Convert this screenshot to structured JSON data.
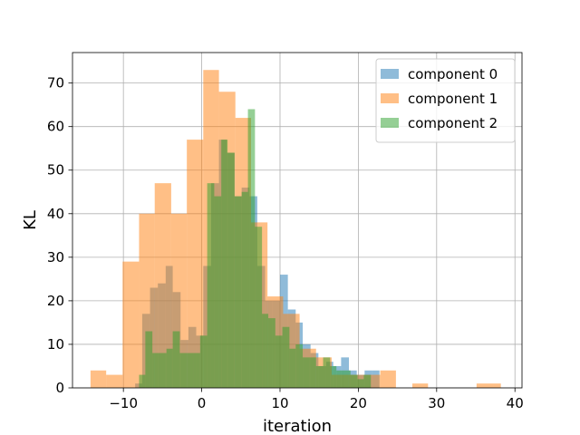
{
  "chart_data": {
    "type": "bar",
    "title": "",
    "xlabel": "iteration",
    "ylabel": "KL",
    "xlim": [
      -16.5,
      40.9
    ],
    "ylim": [
      0,
      77
    ],
    "xticks": [
      -10,
      0,
      10,
      20,
      30,
      40
    ],
    "xtick_labels": [
      "−10",
      "0",
      "10",
      "20",
      "30",
      "40"
    ],
    "yticks": [
      0,
      10,
      20,
      30,
      40,
      50,
      60,
      70
    ],
    "ytick_labels": [
      "0",
      "10",
      "20",
      "30",
      "40",
      "50",
      "60",
      "70"
    ],
    "grid": true,
    "legend_position": "top-right",
    "series": [
      {
        "name": "component 0",
        "color": "#1f77b4",
        "opacity": 0.5,
        "bins": [
          [
            -8.5,
            -7.6,
            1
          ],
          [
            -7.6,
            -6.6,
            17
          ],
          [
            -6.6,
            -5.6,
            23
          ],
          [
            -5.6,
            -4.6,
            24
          ],
          [
            -4.6,
            -3.7,
            28
          ],
          [
            -3.7,
            -2.7,
            22
          ],
          [
            -2.7,
            -1.7,
            11
          ],
          [
            -1.7,
            -0.7,
            14
          ],
          [
            -0.7,
            0.2,
            12
          ],
          [
            0.2,
            1.2,
            28
          ],
          [
            1.2,
            2.2,
            47
          ],
          [
            2.2,
            3.2,
            57
          ],
          [
            3.2,
            4.2,
            54
          ],
          [
            4.2,
            5.1,
            44
          ],
          [
            5.1,
            6.1,
            46
          ],
          [
            6.1,
            7.1,
            44
          ],
          [
            7.1,
            8.1,
            28
          ],
          [
            8.1,
            9.0,
            20
          ],
          [
            9.0,
            10.0,
            20
          ],
          [
            10.0,
            11.0,
            26
          ],
          [
            11.0,
            12.0,
            18
          ],
          [
            12.0,
            12.9,
            15
          ],
          [
            12.9,
            13.9,
            10
          ],
          [
            13.9,
            14.9,
            8
          ],
          [
            14.9,
            15.9,
            5
          ],
          [
            15.9,
            16.8,
            6
          ],
          [
            16.8,
            17.8,
            5
          ],
          [
            17.8,
            18.8,
            7
          ],
          [
            18.8,
            19.8,
            4
          ],
          [
            19.8,
            20.8,
            3
          ],
          [
            20.8,
            21.7,
            4
          ],
          [
            21.7,
            22.7,
            4
          ]
        ]
      },
      {
        "name": "component 1",
        "color": "#ff7f0e",
        "opacity": 0.5,
        "bins": [
          [
            -14.2,
            -12.2,
            4
          ],
          [
            -12.2,
            -10.1,
            3
          ],
          [
            -10.1,
            -8.0,
            29
          ],
          [
            -8.0,
            -6.0,
            40
          ],
          [
            -6.0,
            -3.9,
            47
          ],
          [
            -3.9,
            -1.9,
            40
          ],
          [
            -1.9,
            0.2,
            57
          ],
          [
            0.2,
            2.2,
            73
          ],
          [
            2.2,
            4.3,
            68
          ],
          [
            4.3,
            6.3,
            62
          ],
          [
            6.3,
            8.4,
            38
          ],
          [
            8.4,
            10.4,
            21
          ],
          [
            10.4,
            12.5,
            17
          ],
          [
            12.5,
            14.6,
            9
          ],
          [
            14.6,
            16.6,
            7
          ],
          [
            16.6,
            18.7,
            3
          ],
          [
            18.7,
            20.7,
            3
          ],
          [
            20.7,
            22.8,
            3
          ],
          [
            22.8,
            24.8,
            4
          ],
          [
            24.8,
            26.9,
            0
          ],
          [
            26.9,
            28.9,
            1
          ],
          [
            28.9,
            31.0,
            0
          ],
          [
            31.0,
            33.1,
            0
          ],
          [
            33.1,
            35.1,
            0
          ],
          [
            35.1,
            37.2,
            1
          ],
          [
            37.2,
            38.2,
            1
          ]
        ]
      },
      {
        "name": "component 2",
        "color": "#2ca02c",
        "opacity": 0.5,
        "bins": [
          [
            -8.0,
            -7.2,
            3
          ],
          [
            -7.2,
            -6.3,
            13
          ],
          [
            -6.3,
            -5.4,
            8
          ],
          [
            -5.4,
            -4.5,
            8
          ],
          [
            -4.5,
            -3.7,
            9
          ],
          [
            -3.7,
            -2.8,
            13
          ],
          [
            -2.8,
            -1.9,
            8
          ],
          [
            -1.9,
            -1.1,
            8
          ],
          [
            -1.1,
            -0.2,
            8
          ],
          [
            -0.2,
            0.7,
            12
          ],
          [
            0.7,
            1.6,
            47
          ],
          [
            1.6,
            2.5,
            44
          ],
          [
            2.5,
            3.3,
            57
          ],
          [
            3.3,
            4.2,
            54
          ],
          [
            4.2,
            5.1,
            44
          ],
          [
            5.1,
            5.9,
            45
          ],
          [
            5.9,
            6.8,
            64
          ],
          [
            6.8,
            7.7,
            37
          ],
          [
            7.7,
            8.5,
            17
          ],
          [
            8.5,
            9.4,
            16
          ],
          [
            9.4,
            10.3,
            12
          ],
          [
            10.3,
            11.2,
            14
          ],
          [
            11.2,
            12.0,
            9
          ],
          [
            12.0,
            12.9,
            10
          ],
          [
            12.9,
            13.8,
            7
          ],
          [
            13.8,
            14.6,
            7
          ],
          [
            14.6,
            15.5,
            5
          ],
          [
            15.5,
            16.4,
            7
          ],
          [
            16.4,
            17.2,
            5
          ],
          [
            17.2,
            18.1,
            4
          ],
          [
            18.1,
            19.0,
            4
          ],
          [
            19.0,
            19.9,
            3
          ],
          [
            19.9,
            20.7,
            2
          ],
          [
            20.7,
            21.6,
            3
          ]
        ]
      }
    ]
  }
}
